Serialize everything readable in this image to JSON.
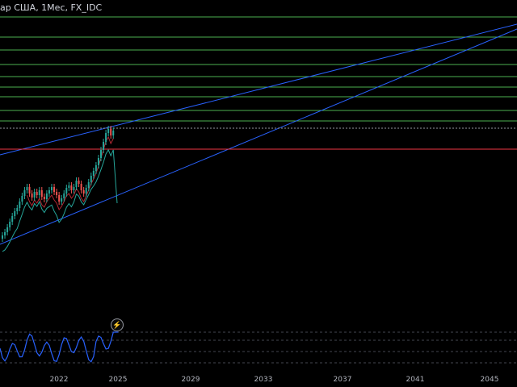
{
  "header": {
    "title": "ар США, 1Мес, FX_IDC"
  },
  "colors": {
    "background": "#000000",
    "horizontal_level": "#4caf50",
    "trendline": "#2962ff",
    "support_line": "#f23645",
    "bull_candle": "#26a69a",
    "bear_candle": "#ef5350",
    "bollinger": "#26a69a",
    "moving_average": "#b22833",
    "oscillator": "#2962ff"
  },
  "alert_button": {
    "icon": "lightning-icon",
    "glyph": "⚡"
  },
  "chart_data": {
    "type": "candlestick",
    "x_ticks": [
      "2022",
      "2025",
      "2029",
      "2033",
      "2037",
      "2041",
      "2045"
    ],
    "panes": [
      "price",
      "oscillator"
    ],
    "grid": false
  }
}
